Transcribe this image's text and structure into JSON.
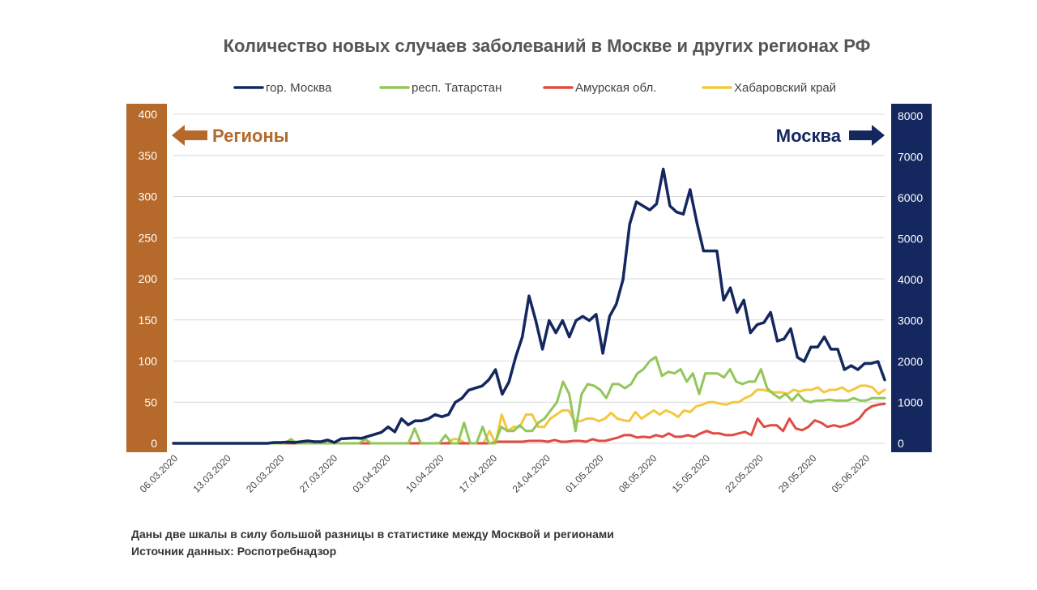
{
  "chart_data": {
    "type": "line",
    "title": "Количество новых случаев заболеваний в Москве и других регионах РФ",
    "left_axis": {
      "ticks": [
        "400",
        "350",
        "300",
        "250",
        "200",
        "150",
        "100",
        "50",
        "0"
      ],
      "range": [
        0,
        400
      ],
      "label": "Регионы",
      "color": "#B5692B"
    },
    "right_axis": {
      "ticks": [
        "8000",
        "7000",
        "6000",
        "5000",
        "4000",
        "3000",
        "2000",
        "1000",
        "0"
      ],
      "range": [
        0,
        8000
      ],
      "label": "Москва",
      "color": "#14275E"
    },
    "x_tick_labels": [
      "06.03.2020",
      "13.03.2020",
      "20.03.2020",
      "27.03.2020",
      "03.04.2020",
      "10.04.2020",
      "17.04.2020",
      "24.04.2020",
      "01.05.2020",
      "08.05.2020",
      "15.05.2020",
      "22.05.2020",
      "29.05.2020",
      "05.06.2020"
    ],
    "x_start": "06.03.2020",
    "series": [
      {
        "name": "гор. Москва",
        "color": "#14275E",
        "axis": "right",
        "values": [
          0,
          0,
          0,
          0,
          0,
          0,
          0,
          0,
          0,
          0,
          0,
          0,
          0,
          0,
          0,
          20,
          20,
          30,
          20,
          40,
          60,
          40,
          40,
          80,
          20,
          110,
          120,
          130,
          120,
          170,
          220,
          270,
          400,
          280,
          600,
          450,
          550,
          550,
          600,
          700,
          650,
          700,
          1000,
          1100,
          1300,
          1350,
          1400,
          1550,
          1800,
          1200,
          1500,
          2100,
          2600,
          3600,
          3000,
          2300,
          3000,
          2700,
          3000,
          2600,
          3000,
          3100,
          3000,
          3150,
          2200,
          3100,
          3400,
          4000,
          5350,
          5900,
          5800,
          5700,
          5850,
          6700,
          5800,
          5650,
          5600,
          6200,
          5400,
          4700,
          4700,
          4700,
          3500,
          3800,
          3200,
          3500,
          2700,
          2900,
          2950,
          3200,
          2500,
          2550,
          2800,
          2100,
          2000,
          2350,
          2350,
          2600,
          2300,
          2300,
          1800,
          1900,
          1800,
          1950,
          1950,
          2000,
          1550
        ]
      },
      {
        "name": "респ. Татарстан",
        "color": "#92C659",
        "axis": "left",
        "values": [
          0,
          0,
          0,
          0,
          0,
          0,
          0,
          0,
          0,
          0,
          0,
          0,
          0,
          0,
          0,
          0,
          0,
          0,
          0,
          5,
          0,
          0,
          0,
          0,
          0,
          0,
          0,
          0,
          0,
          0,
          0,
          5,
          0,
          0,
          0,
          0,
          0,
          0,
          0,
          18,
          0,
          0,
          0,
          0,
          10,
          0,
          0,
          25,
          0,
          0,
          20,
          0,
          0,
          20,
          15,
          15,
          22,
          15,
          15,
          25,
          30,
          40,
          50,
          75,
          60,
          15,
          60,
          72,
          70,
          65,
          55,
          72,
          72,
          67,
          72,
          85,
          90,
          100,
          105,
          82,
          87,
          85,
          90,
          75,
          85,
          60,
          85,
          85,
          85,
          80,
          90,
          75,
          72,
          75,
          75,
          90,
          67,
          60,
          55,
          60,
          52,
          60,
          52,
          50,
          52,
          52,
          53,
          52,
          52,
          52,
          55,
          52,
          52,
          55,
          55,
          55
        ],
        "note": "values are read approximately from the chart"
      },
      {
        "name": "Амурская обл.",
        "color": "#E04B41",
        "axis": "left",
        "values": [
          0,
          0,
          0,
          0,
          0,
          0,
          0,
          0,
          0,
          0,
          0,
          0,
          0,
          0,
          0,
          0,
          0,
          0,
          0,
          0,
          0,
          0,
          0,
          0,
          0,
          0,
          0,
          0,
          0,
          0,
          0,
          0,
          0,
          0,
          0,
          0,
          0,
          0,
          0,
          0,
          0,
          0,
          0,
          0,
          0,
          0,
          0,
          0,
          0,
          0,
          0,
          2,
          2,
          2,
          2,
          2,
          3,
          3,
          3,
          2,
          4,
          2,
          2,
          3,
          3,
          2,
          5,
          3,
          3,
          5,
          7,
          10,
          10,
          7,
          8,
          7,
          10,
          8,
          12,
          8,
          8,
          10,
          8,
          12,
          15,
          12,
          12,
          10,
          10,
          12,
          14,
          10,
          30,
          20,
          22,
          22,
          15,
          30,
          18,
          16,
          20,
          28,
          25,
          20,
          22,
          20,
          22,
          25,
          30,
          40,
          45,
          47,
          48
        ]
      },
      {
        "name": "Хабаровский край",
        "color": "#F4C73E",
        "axis": "left",
        "values": [
          0,
          0,
          0,
          0,
          0,
          0,
          0,
          0,
          0,
          0,
          0,
          0,
          0,
          0,
          0,
          0,
          0,
          0,
          0,
          0,
          0,
          0,
          0,
          0,
          0,
          0,
          0,
          0,
          0,
          0,
          0,
          0,
          0,
          0,
          0,
          0,
          0,
          0,
          0,
          0,
          0,
          0,
          0,
          0,
          0,
          0,
          5,
          5,
          0,
          0,
          0,
          0,
          15,
          0,
          35,
          15,
          20,
          20,
          35,
          35,
          20,
          20,
          30,
          35,
          40,
          40,
          27,
          27,
          30,
          30,
          27,
          30,
          37,
          30,
          28,
          27,
          38,
          30,
          35,
          40,
          35,
          40,
          37,
          32,
          40,
          38,
          45,
          47,
          50,
          50,
          48,
          47,
          50,
          50,
          55,
          58,
          65,
          65,
          63,
          62,
          62,
          60,
          65,
          63,
          65,
          65,
          68,
          62,
          65,
          65,
          68,
          63,
          66,
          70,
          70,
          68,
          60,
          65
        ]
      }
    ]
  },
  "footer": {
    "note1": "Даны две шкалы в силу большой разницы в статистике между Москвой и регионами",
    "note2": "Источник данных: Роспотребнадзор"
  }
}
